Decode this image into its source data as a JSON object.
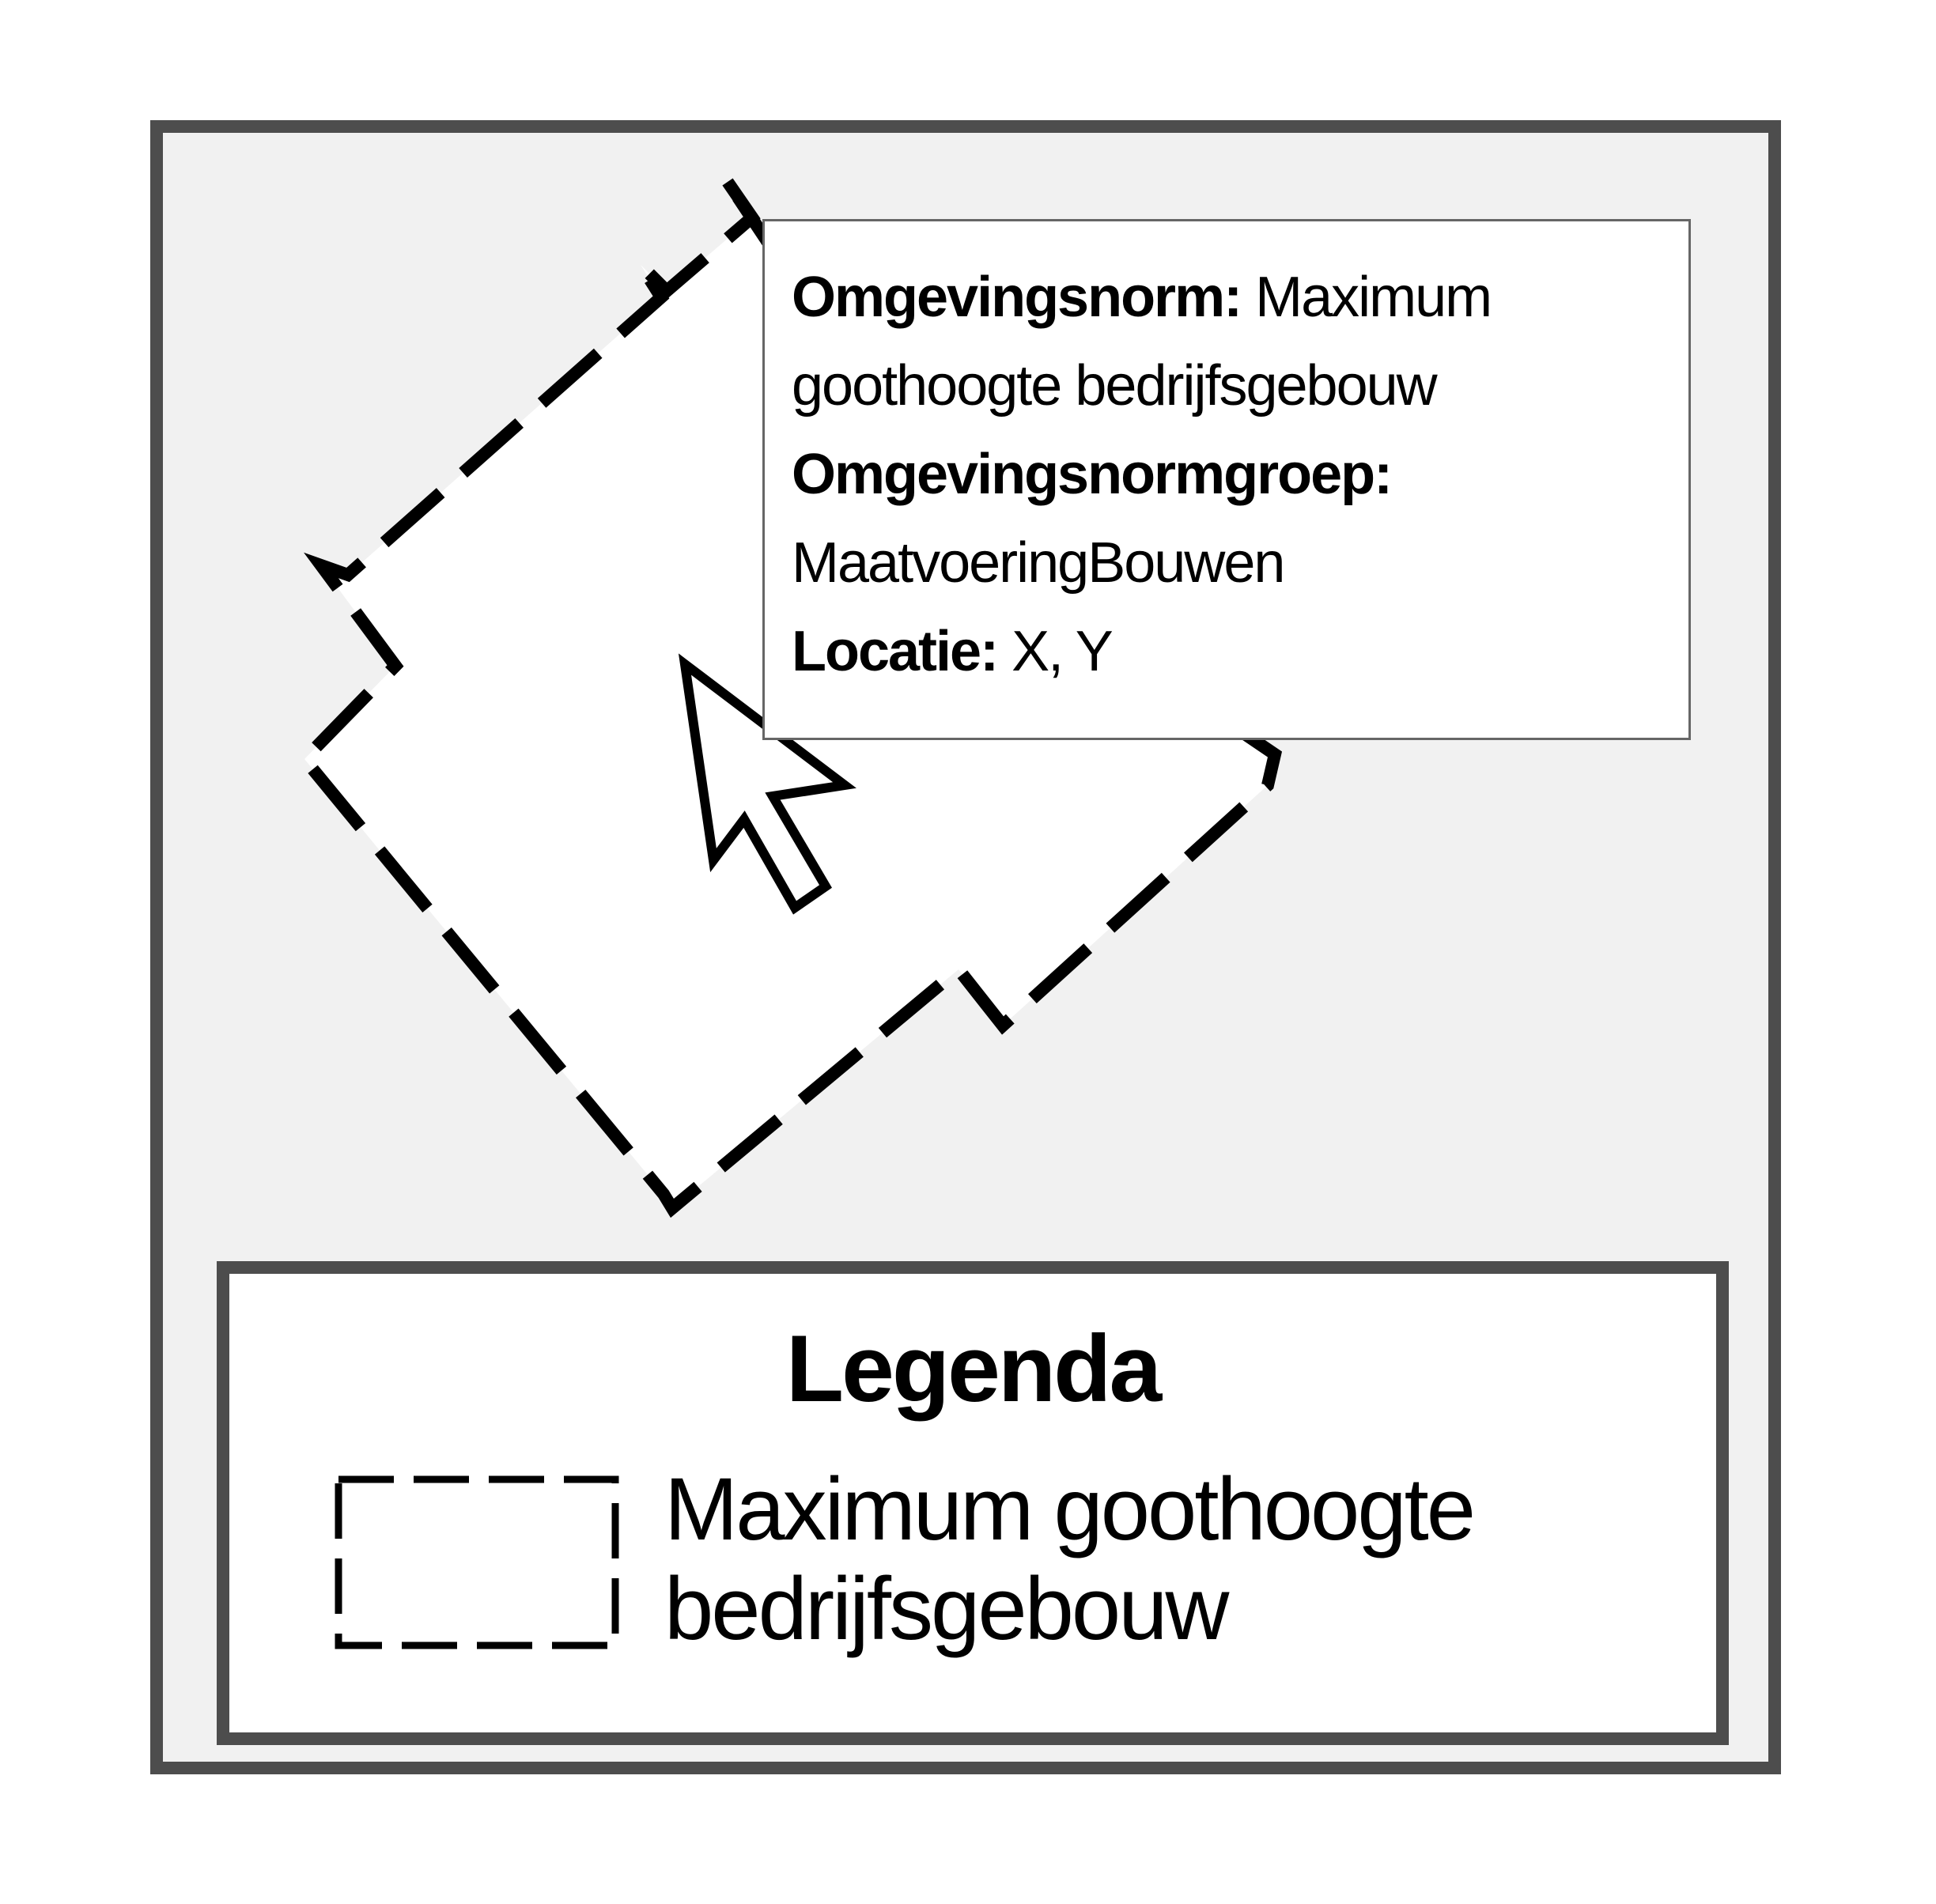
{
  "popup": {
    "norm_label": "Omgevingsnorm:",
    "norm_value_line1": "Maximum",
    "norm_value_line2": "goothoogte bedrijfsgebouw",
    "group_label": "Omgevingsnormgroep:",
    "group_value": "MaatvoeringBouwen",
    "location_label": "Locatie:",
    "location_value": "X, Y"
  },
  "legend": {
    "title": "Legenda",
    "items": [
      {
        "label_line1": "Maximum goothoogte",
        "label_line2": "bedrijfsgebouw",
        "symbol": "dashed-rectangle"
      }
    ]
  },
  "cursor": {
    "icon": "mouse-pointer-icon"
  },
  "colors": {
    "frame_border": "#4d4d4d",
    "map_background": "#f1f1f1",
    "area_fill": "#ffffff",
    "outline": "#000000",
    "popup_border": "#666666"
  }
}
